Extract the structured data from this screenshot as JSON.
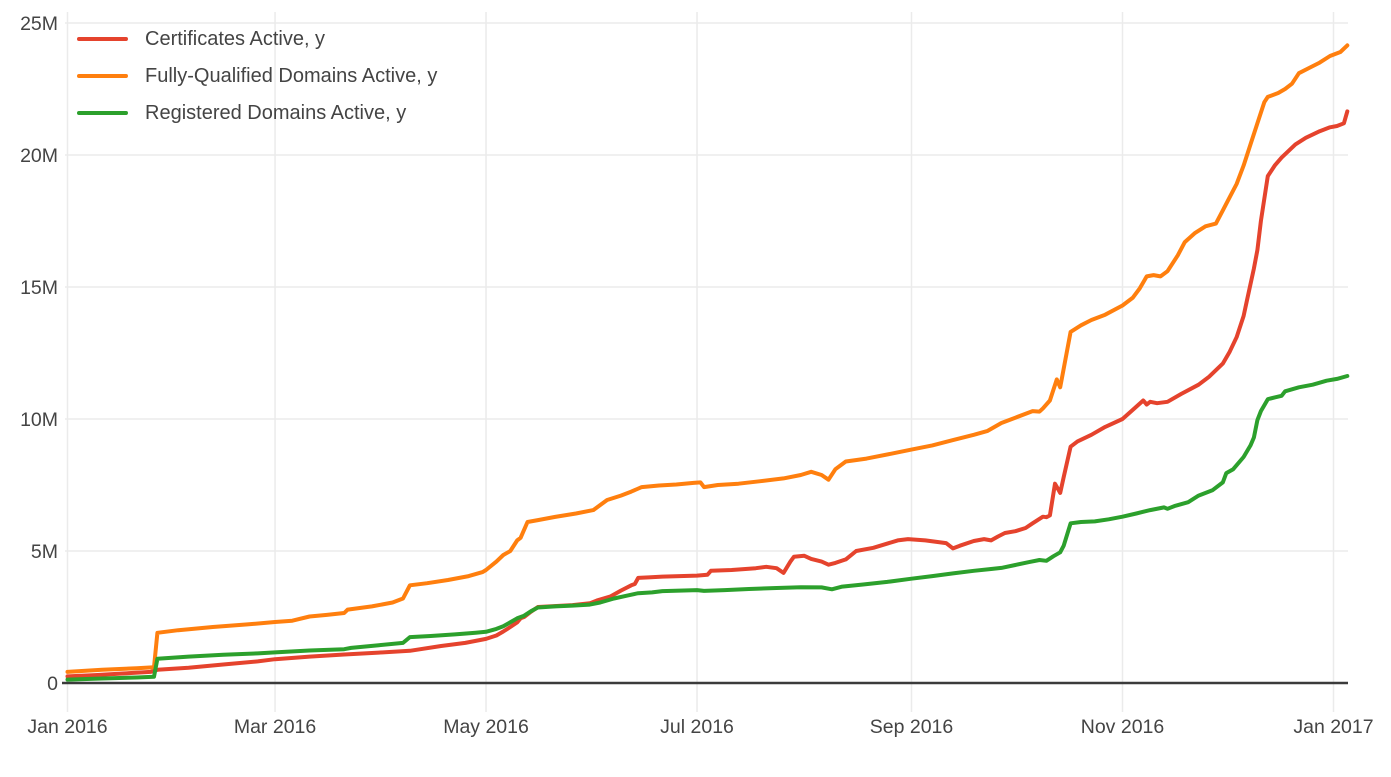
{
  "chart_data": {
    "type": "line",
    "title": "",
    "x_unit": "days since 2016-01-01",
    "x_axis": {
      "range_days": [
        0,
        370
      ],
      "ticks": [
        {
          "day": 0,
          "label": "Jan 2016"
        },
        {
          "day": 60,
          "label": "Mar 2016"
        },
        {
          "day": 121,
          "label": "May 2016"
        },
        {
          "day": 182,
          "label": "Jul 2016"
        },
        {
          "day": 244,
          "label": "Sep 2016"
        },
        {
          "day": 305,
          "label": "Nov 2016"
        },
        {
          "day": 366,
          "label": "Jan 2017"
        }
      ]
    },
    "y_axis": {
      "units": "millions",
      "range": [
        -1.1,
        25.4
      ],
      "ticks": [
        {
          "value": 0,
          "label": "0"
        },
        {
          "value": 5,
          "label": "5M"
        },
        {
          "value": 10,
          "label": "10M"
        },
        {
          "value": 15,
          "label": "15M"
        },
        {
          "value": 20,
          "label": "20M"
        },
        {
          "value": 25,
          "label": "25M"
        }
      ]
    },
    "grid": true,
    "legend_position": "top-left",
    "colors": {
      "grid": "#ebebeb",
      "zeroline": "#3b3b3b",
      "text": "#444444",
      "background": "#ffffff"
    },
    "series": [
      {
        "name": "Certificates Active, y",
        "color": "#e5432d",
        "points": [
          [
            0,
            0.25
          ],
          [
            8,
            0.3
          ],
          [
            16,
            0.36
          ],
          [
            24,
            0.42
          ],
          [
            26,
            0.5
          ],
          [
            35,
            0.58
          ],
          [
            45,
            0.7
          ],
          [
            55,
            0.82
          ],
          [
            60,
            0.9
          ],
          [
            70,
            1.0
          ],
          [
            80,
            1.08
          ],
          [
            90,
            1.15
          ],
          [
            99,
            1.22
          ],
          [
            108,
            1.4
          ],
          [
            115,
            1.52
          ],
          [
            121,
            1.67
          ],
          [
            124,
            1.8
          ],
          [
            126,
            1.95
          ],
          [
            128,
            2.12
          ],
          [
            130,
            2.3
          ],
          [
            131,
            2.45
          ],
          [
            132,
            2.5
          ],
          [
            134,
            2.7
          ],
          [
            136,
            2.88
          ],
          [
            140,
            2.91
          ],
          [
            146,
            2.95
          ],
          [
            151,
            3.02
          ],
          [
            153,
            3.12
          ],
          [
            157,
            3.28
          ],
          [
            160,
            3.5
          ],
          [
            163,
            3.7
          ],
          [
            164,
            3.75
          ],
          [
            165,
            3.98
          ],
          [
            168,
            4.0
          ],
          [
            172,
            4.03
          ],
          [
            177,
            4.05
          ],
          [
            182,
            4.07
          ],
          [
            185,
            4.1
          ],
          [
            186,
            4.25
          ],
          [
            192,
            4.28
          ],
          [
            199,
            4.35
          ],
          [
            202,
            4.4
          ],
          [
            205,
            4.35
          ],
          [
            207,
            4.17
          ],
          [
            209,
            4.6
          ],
          [
            210,
            4.78
          ],
          [
            213,
            4.82
          ],
          [
            215,
            4.7
          ],
          [
            218,
            4.6
          ],
          [
            220,
            4.48
          ],
          [
            222,
            4.55
          ],
          [
            225,
            4.68
          ],
          [
            228,
            5.0
          ],
          [
            233,
            5.12
          ],
          [
            240,
            5.4
          ],
          [
            243,
            5.45
          ],
          [
            248,
            5.4
          ],
          [
            254,
            5.3
          ],
          [
            256,
            5.1
          ],
          [
            258,
            5.2
          ],
          [
            262,
            5.38
          ],
          [
            265,
            5.45
          ],
          [
            267,
            5.4
          ],
          [
            269,
            5.55
          ],
          [
            271,
            5.68
          ],
          [
            274,
            5.75
          ],
          [
            277,
            5.87
          ],
          [
            279,
            6.05
          ],
          [
            282,
            6.3
          ],
          [
            283,
            6.28
          ],
          [
            284,
            6.35
          ],
          [
            285.5,
            7.55
          ],
          [
            287,
            7.2
          ],
          [
            288,
            7.8
          ],
          [
            290,
            8.95
          ],
          [
            292,
            9.15
          ],
          [
            296,
            9.4
          ],
          [
            300,
            9.7
          ],
          [
            305,
            10.0
          ],
          [
            308,
            10.35
          ],
          [
            311,
            10.7
          ],
          [
            312,
            10.55
          ],
          [
            313,
            10.65
          ],
          [
            315,
            10.6
          ],
          [
            318,
            10.65
          ],
          [
            322,
            10.95
          ],
          [
            327,
            11.3
          ],
          [
            330,
            11.6
          ],
          [
            334,
            12.1
          ],
          [
            336,
            12.55
          ],
          [
            338,
            13.1
          ],
          [
            340,
            13.9
          ],
          [
            341,
            14.5
          ],
          [
            343,
            15.7
          ],
          [
            344,
            16.4
          ],
          [
            345,
            17.5
          ],
          [
            347,
            19.2
          ],
          [
            349,
            19.6
          ],
          [
            351,
            19.9
          ],
          [
            355,
            20.4
          ],
          [
            358,
            20.65
          ],
          [
            362,
            20.9
          ],
          [
            365,
            21.05
          ],
          [
            367,
            21.1
          ],
          [
            369,
            21.2
          ],
          [
            370,
            21.65
          ]
        ]
      },
      {
        "name": "Fully-Qualified Domains Active, y",
        "color": "#ff7f0e",
        "points": [
          [
            0,
            0.42
          ],
          [
            10,
            0.5
          ],
          [
            20,
            0.56
          ],
          [
            25,
            0.6
          ],
          [
            26,
            1.9
          ],
          [
            32,
            2.0
          ],
          [
            42,
            2.12
          ],
          [
            52,
            2.22
          ],
          [
            60,
            2.31
          ],
          [
            65,
            2.36
          ],
          [
            70,
            2.52
          ],
          [
            75,
            2.58
          ],
          [
            80,
            2.65
          ],
          [
            81,
            2.78
          ],
          [
            88,
            2.9
          ],
          [
            94,
            3.05
          ],
          [
            97,
            3.2
          ],
          [
            99,
            3.7
          ],
          [
            104,
            3.78
          ],
          [
            110,
            3.9
          ],
          [
            116,
            4.05
          ],
          [
            120,
            4.2
          ],
          [
            121,
            4.28
          ],
          [
            124,
            4.6
          ],
          [
            126,
            4.85
          ],
          [
            128,
            5.0
          ],
          [
            130,
            5.4
          ],
          [
            131,
            5.5
          ],
          [
            133,
            6.1
          ],
          [
            136,
            6.17
          ],
          [
            141,
            6.29
          ],
          [
            147,
            6.42
          ],
          [
            152,
            6.55
          ],
          [
            156,
            6.93
          ],
          [
            160,
            7.1
          ],
          [
            163,
            7.25
          ],
          [
            166,
            7.42
          ],
          [
            171,
            7.48
          ],
          [
            176,
            7.52
          ],
          [
            181,
            7.58
          ],
          [
            183,
            7.6
          ],
          [
            184,
            7.42
          ],
          [
            188,
            7.5
          ],
          [
            194,
            7.55
          ],
          [
            200,
            7.64
          ],
          [
            207,
            7.75
          ],
          [
            212,
            7.88
          ],
          [
            215,
            8.0
          ],
          [
            218,
            7.88
          ],
          [
            220,
            7.7
          ],
          [
            222,
            8.1
          ],
          [
            225,
            8.39
          ],
          [
            231,
            8.5
          ],
          [
            238,
            8.68
          ],
          [
            244,
            8.84
          ],
          [
            250,
            9.0
          ],
          [
            256,
            9.2
          ],
          [
            262,
            9.4
          ],
          [
            266,
            9.55
          ],
          [
            270,
            9.85
          ],
          [
            274,
            10.05
          ],
          [
            279,
            10.3
          ],
          [
            281,
            10.28
          ],
          [
            282,
            10.4
          ],
          [
            284,
            10.7
          ],
          [
            286,
            11.5
          ],
          [
            287,
            11.2
          ],
          [
            290,
            13.3
          ],
          [
            293,
            13.55
          ],
          [
            296,
            13.75
          ],
          [
            300,
            13.95
          ],
          [
            305,
            14.3
          ],
          [
            308,
            14.6
          ],
          [
            310,
            14.95
          ],
          [
            312,
            15.4
          ],
          [
            314,
            15.45
          ],
          [
            316,
            15.4
          ],
          [
            318,
            15.6
          ],
          [
            321,
            16.2
          ],
          [
            323,
            16.7
          ],
          [
            326,
            17.05
          ],
          [
            329,
            17.3
          ],
          [
            332,
            17.4
          ],
          [
            334,
            17.9
          ],
          [
            336,
            18.4
          ],
          [
            338,
            18.9
          ],
          [
            340,
            19.6
          ],
          [
            342,
            20.4
          ],
          [
            344,
            21.2
          ],
          [
            346,
            22.0
          ],
          [
            347,
            22.2
          ],
          [
            350,
            22.35
          ],
          [
            352,
            22.5
          ],
          [
            354,
            22.7
          ],
          [
            356,
            23.1
          ],
          [
            359,
            23.3
          ],
          [
            362,
            23.5
          ],
          [
            365,
            23.75
          ],
          [
            368,
            23.9
          ],
          [
            370,
            24.15
          ]
        ]
      },
      {
        "name": "Registered Domains Active, y",
        "color": "#2ca02c",
        "points": [
          [
            0,
            0.13
          ],
          [
            10,
            0.17
          ],
          [
            20,
            0.21
          ],
          [
            25,
            0.24
          ],
          [
            26,
            0.92
          ],
          [
            35,
            1.0
          ],
          [
            45,
            1.07
          ],
          [
            55,
            1.12
          ],
          [
            60,
            1.16
          ],
          [
            70,
            1.23
          ],
          [
            80,
            1.28
          ],
          [
            82,
            1.33
          ],
          [
            90,
            1.43
          ],
          [
            97,
            1.52
          ],
          [
            99,
            1.74
          ],
          [
            105,
            1.78
          ],
          [
            112,
            1.84
          ],
          [
            118,
            1.9
          ],
          [
            121,
            1.94
          ],
          [
            124,
            2.05
          ],
          [
            126,
            2.15
          ],
          [
            128,
            2.3
          ],
          [
            130,
            2.45
          ],
          [
            132,
            2.55
          ],
          [
            134,
            2.72
          ],
          [
            136,
            2.86
          ],
          [
            141,
            2.9
          ],
          [
            146,
            2.93
          ],
          [
            151,
            2.97
          ],
          [
            154,
            3.05
          ],
          [
            158,
            3.2
          ],
          [
            162,
            3.32
          ],
          [
            165,
            3.4
          ],
          [
            169,
            3.43
          ],
          [
            172,
            3.48
          ],
          [
            177,
            3.5
          ],
          [
            182,
            3.52
          ],
          [
            184,
            3.49
          ],
          [
            190,
            3.52
          ],
          [
            197,
            3.56
          ],
          [
            205,
            3.6
          ],
          [
            212,
            3.63
          ],
          [
            218,
            3.62
          ],
          [
            221,
            3.55
          ],
          [
            224,
            3.65
          ],
          [
            230,
            3.73
          ],
          [
            237,
            3.83
          ],
          [
            244,
            3.95
          ],
          [
            250,
            4.05
          ],
          [
            256,
            4.15
          ],
          [
            262,
            4.25
          ],
          [
            267,
            4.32
          ],
          [
            270,
            4.36
          ],
          [
            274,
            4.47
          ],
          [
            278,
            4.58
          ],
          [
            281,
            4.66
          ],
          [
            283,
            4.63
          ],
          [
            285,
            4.8
          ],
          [
            287,
            4.95
          ],
          [
            288,
            5.2
          ],
          [
            290,
            6.05
          ],
          [
            293,
            6.1
          ],
          [
            297,
            6.12
          ],
          [
            301,
            6.2
          ],
          [
            305,
            6.3
          ],
          [
            309,
            6.42
          ],
          [
            313,
            6.55
          ],
          [
            317,
            6.65
          ],
          [
            318,
            6.6
          ],
          [
            320,
            6.7
          ],
          [
            324,
            6.85
          ],
          [
            327,
            7.1
          ],
          [
            331,
            7.3
          ],
          [
            334,
            7.6
          ],
          [
            335,
            7.95
          ],
          [
            337,
            8.1
          ],
          [
            340,
            8.56
          ],
          [
            342,
            9.0
          ],
          [
            343,
            9.3
          ],
          [
            344,
            9.96
          ],
          [
            345,
            10.3
          ],
          [
            347,
            10.75
          ],
          [
            349,
            10.82
          ],
          [
            351,
            10.88
          ],
          [
            352,
            11.05
          ],
          [
            356,
            11.2
          ],
          [
            360,
            11.3
          ],
          [
            364,
            11.45
          ],
          [
            367,
            11.52
          ],
          [
            370,
            11.63
          ]
        ]
      }
    ]
  }
}
